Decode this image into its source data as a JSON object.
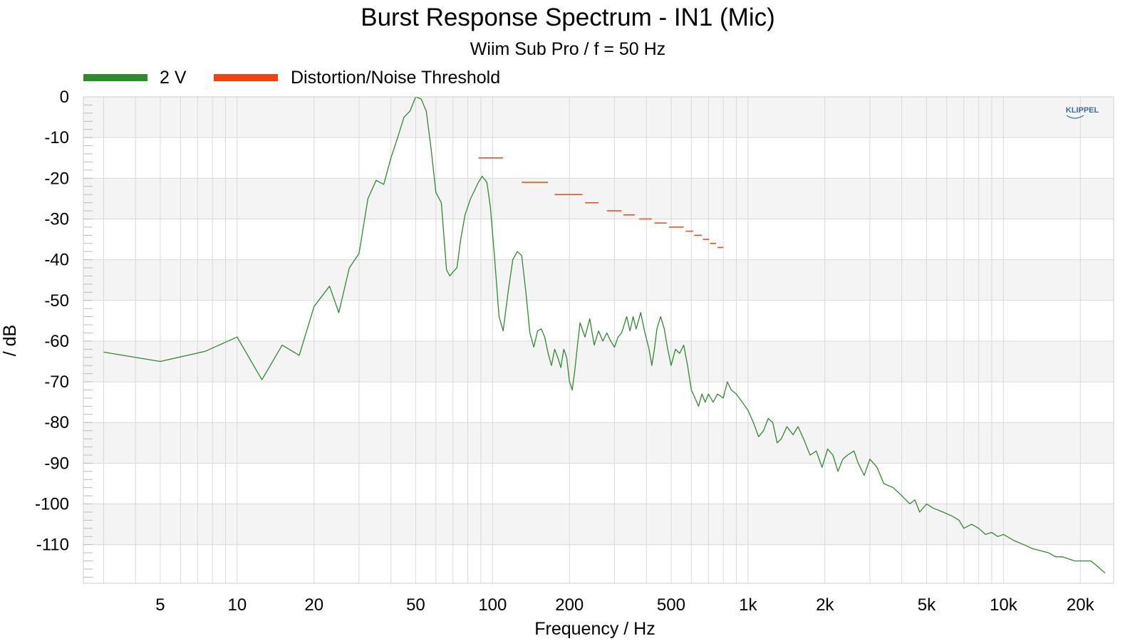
{
  "chart_data": {
    "type": "line",
    "title": "Burst Response Spectrum - IN1 (Mic)",
    "subtitle": "Wiim Sub Pro / f = 50 Hz",
    "xlabel": "Frequency / Hz",
    "ylabel": "/ dB",
    "x_scale": "log",
    "xlim": [
      2.5,
      27000
    ],
    "ylim": [
      -119.5,
      0
    ],
    "grid": true,
    "legend_position": "top-left",
    "logo_text": "KLIPPEL",
    "x_ticks": [
      {
        "value": 5,
        "label": "5"
      },
      {
        "value": 10,
        "label": "10"
      },
      {
        "value": 20,
        "label": "20"
      },
      {
        "value": 50,
        "label": "50"
      },
      {
        "value": 100,
        "label": "100"
      },
      {
        "value": 200,
        "label": "200"
      },
      {
        "value": 500,
        "label": "500"
      },
      {
        "value": 1000,
        "label": "1k"
      },
      {
        "value": 2000,
        "label": "2k"
      },
      {
        "value": 5000,
        "label": "5k"
      },
      {
        "value": 10000,
        "label": "10k"
      },
      {
        "value": 20000,
        "label": "20k"
      }
    ],
    "y_ticks": [
      {
        "value": 0,
        "label": "0"
      },
      {
        "value": -10,
        "label": "-10"
      },
      {
        "value": -20,
        "label": "-20"
      },
      {
        "value": -30,
        "label": "-30"
      },
      {
        "value": -40,
        "label": "-40"
      },
      {
        "value": -50,
        "label": "-50"
      },
      {
        "value": -60,
        "label": "-60"
      },
      {
        "value": -70,
        "label": "-70"
      },
      {
        "value": -80,
        "label": "-80"
      },
      {
        "value": -90,
        "label": "-90"
      },
      {
        "value": -100,
        "label": "-100"
      },
      {
        "value": -110,
        "label": "-110"
      }
    ],
    "series": [
      {
        "name": "2 V",
        "color": "#2e8b2e",
        "style": "line",
        "points": [
          [
            3,
            -62.7
          ],
          [
            5,
            -65
          ],
          [
            7.5,
            -62.5
          ],
          [
            10,
            -59
          ],
          [
            12.5,
            -69.5
          ],
          [
            15,
            -61
          ],
          [
            17.5,
            -63.5
          ],
          [
            20,
            -51.5
          ],
          [
            23,
            -46.5
          ],
          [
            25,
            -53
          ],
          [
            27.5,
            -42
          ],
          [
            30,
            -38.5
          ],
          [
            32.5,
            -25
          ],
          [
            35,
            -20.5
          ],
          [
            37.5,
            -21.5
          ],
          [
            40,
            -15
          ],
          [
            42.5,
            -10
          ],
          [
            45,
            -5
          ],
          [
            47.5,
            -3.5
          ],
          [
            50,
            0
          ],
          [
            52.5,
            -0.5
          ],
          [
            55,
            -3.5
          ],
          [
            57.5,
            -13
          ],
          [
            60,
            -23.5
          ],
          [
            63,
            -26
          ],
          [
            66,
            -42.5
          ],
          [
            68,
            -44
          ],
          [
            70,
            -43
          ],
          [
            72.5,
            -42
          ],
          [
            75,
            -35
          ],
          [
            78,
            -29
          ],
          [
            82,
            -25
          ],
          [
            85,
            -23
          ],
          [
            88,
            -21
          ],
          [
            91,
            -19.5
          ],
          [
            95,
            -21
          ],
          [
            98,
            -27
          ],
          [
            102,
            -40
          ],
          [
            106,
            -54
          ],
          [
            110,
            -57.5
          ],
          [
            115,
            -48
          ],
          [
            120,
            -40
          ],
          [
            125,
            -38
          ],
          [
            130,
            -39
          ],
          [
            135,
            -48
          ],
          [
            140,
            -58
          ],
          [
            145,
            -61.5
          ],
          [
            150,
            -57.5
          ],
          [
            155,
            -57
          ],
          [
            160,
            -59
          ],
          [
            165,
            -63
          ],
          [
            170,
            -66
          ],
          [
            175,
            -62
          ],
          [
            180,
            -64
          ],
          [
            185,
            -66.5
          ],
          [
            190,
            -62
          ],
          [
            195,
            -64
          ],
          [
            200,
            -70
          ],
          [
            205,
            -72
          ],
          [
            210,
            -67
          ],
          [
            215,
            -61
          ],
          [
            220,
            -55.5
          ],
          [
            230,
            -59
          ],
          [
            240,
            -54.5
          ],
          [
            250,
            -61
          ],
          [
            260,
            -57.5
          ],
          [
            270,
            -60
          ],
          [
            280,
            -58
          ],
          [
            290,
            -60
          ],
          [
            300,
            -61.5
          ],
          [
            310,
            -59
          ],
          [
            320,
            -58
          ],
          [
            335,
            -54
          ],
          [
            345,
            -57.5
          ],
          [
            355,
            -54
          ],
          [
            365,
            -57
          ],
          [
            380,
            -53
          ],
          [
            395,
            -58
          ],
          [
            410,
            -62
          ],
          [
            420,
            -66
          ],
          [
            430,
            -62
          ],
          [
            440,
            -57
          ],
          [
            455,
            -54
          ],
          [
            470,
            -57
          ],
          [
            485,
            -62
          ],
          [
            500,
            -66
          ],
          [
            520,
            -62
          ],
          [
            540,
            -63
          ],
          [
            560,
            -61
          ],
          [
            580,
            -66
          ],
          [
            600,
            -72
          ],
          [
            620,
            -74
          ],
          [
            640,
            -76
          ],
          [
            660,
            -73
          ],
          [
            680,
            -75
          ],
          [
            700,
            -73
          ],
          [
            730,
            -75
          ],
          [
            760,
            -73
          ],
          [
            800,
            -74
          ],
          [
            830,
            -70
          ],
          [
            860,
            -72
          ],
          [
            900,
            -73
          ],
          [
            950,
            -75
          ],
          [
            1000,
            -77
          ],
          [
            1050,
            -80
          ],
          [
            1100,
            -83.5
          ],
          [
            1150,
            -82
          ],
          [
            1200,
            -79
          ],
          [
            1250,
            -80
          ],
          [
            1300,
            -85
          ],
          [
            1350,
            -84
          ],
          [
            1420,
            -81
          ],
          [
            1500,
            -83
          ],
          [
            1570,
            -81
          ],
          [
            1650,
            -84
          ],
          [
            1750,
            -88
          ],
          [
            1850,
            -87
          ],
          [
            1950,
            -91
          ],
          [
            2050,
            -86.5
          ],
          [
            2150,
            -88
          ],
          [
            2250,
            -92
          ],
          [
            2350,
            -89
          ],
          [
            2450,
            -88
          ],
          [
            2600,
            -87
          ],
          [
            2700,
            -90
          ],
          [
            2850,
            -93
          ],
          [
            3000,
            -89
          ],
          [
            3200,
            -91
          ],
          [
            3400,
            -95
          ],
          [
            3700,
            -96
          ],
          [
            4000,
            -98
          ],
          [
            4300,
            -100
          ],
          [
            4500,
            -99
          ],
          [
            4700,
            -102
          ],
          [
            5000,
            -100
          ],
          [
            5300,
            -101
          ],
          [
            5800,
            -102
          ],
          [
            6300,
            -103
          ],
          [
            6700,
            -104
          ],
          [
            7000,
            -106
          ],
          [
            7500,
            -105
          ],
          [
            8000,
            -106
          ],
          [
            8500,
            -107.5
          ],
          [
            9000,
            -107
          ],
          [
            9500,
            -108
          ],
          [
            10000,
            -107.5
          ],
          [
            11000,
            -109
          ],
          [
            12000,
            -110
          ],
          [
            13000,
            -111
          ],
          [
            14000,
            -111.5
          ],
          [
            15000,
            -112
          ],
          [
            16000,
            -113
          ],
          [
            17000,
            -113
          ],
          [
            18000,
            -113.5
          ],
          [
            19000,
            -114
          ],
          [
            20000,
            -114
          ],
          [
            22000,
            -114
          ],
          [
            23000,
            -115
          ],
          [
            24000,
            -116
          ],
          [
            25000,
            -117
          ]
        ]
      },
      {
        "name": "Distortion/Noise Threshold",
        "color": "#ee4411",
        "style": "segments",
        "segments": [
          [
            [
              88,
              110
            ],
            -15
          ],
          [
            [
              130,
              165
            ],
            -21
          ],
          [
            [
              175,
              225
            ],
            -24
          ],
          [
            [
              230,
              260
            ],
            -26
          ],
          [
            [
              280,
              320
            ],
            -28
          ],
          [
            [
              325,
              360
            ],
            -29
          ],
          [
            [
              375,
              420
            ],
            -30
          ],
          [
            [
              430,
              480
            ],
            -31
          ],
          [
            [
              490,
              560
            ],
            -32
          ],
          [
            [
              570,
              610
            ],
            -33
          ],
          [
            [
              615,
              660
            ],
            -34
          ],
          [
            [
              665,
              705
            ],
            -35
          ],
          [
            [
              710,
              750
            ],
            -36
          ],
          [
            [
              760,
              800
            ],
            -37
          ]
        ]
      }
    ]
  }
}
